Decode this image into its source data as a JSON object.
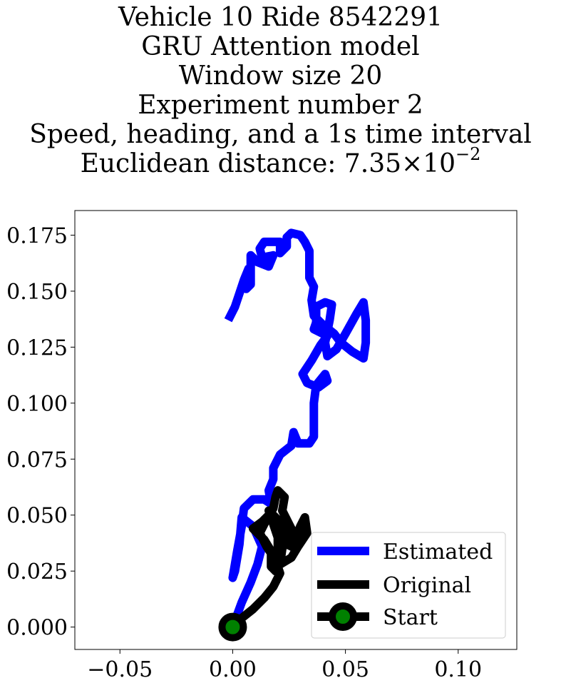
{
  "chart_data": {
    "type": "line",
    "title_lines": [
      "Vehicle 10 Ride 8542291",
      "GRU Attention model",
      "Window size 20",
      "Experiment number 2",
      "Speed, heading, and a 1s time interval"
    ],
    "distance_label": "Euclidean distance:",
    "distance_mantissa": "7.35",
    "distance_times": "×",
    "distance_base": "10",
    "distance_exponent": "−2",
    "xlabel": "",
    "ylabel": "",
    "xlim": [
      -0.07,
      0.126
    ],
    "ylim": [
      -0.01,
      0.186
    ],
    "xticks": [
      {
        "v": -0.05,
        "label": "−0.05"
      },
      {
        "v": 0.0,
        "label": "0.00"
      },
      {
        "v": 0.05,
        "label": "0.05"
      },
      {
        "v": 0.1,
        "label": "0.10"
      }
    ],
    "yticks": [
      {
        "v": 0.0,
        "label": "0.000"
      },
      {
        "v": 0.025,
        "label": "0.025"
      },
      {
        "v": 0.05,
        "label": "0.050"
      },
      {
        "v": 0.075,
        "label": "0.075"
      },
      {
        "v": 0.1,
        "label": "0.100"
      },
      {
        "v": 0.125,
        "label": "0.125"
      },
      {
        "v": 0.15,
        "label": "0.150"
      },
      {
        "v": 0.175,
        "label": "0.175"
      }
    ],
    "legend_position": "lower-right",
    "series": [
      {
        "name": "Estimated",
        "color": "#0000ff",
        "points": [
          [
            0.0,
            0.0
          ],
          [
            0.004,
            0.011
          ],
          [
            0.008,
            0.02
          ],
          [
            0.011,
            0.028
          ],
          [
            0.013,
            0.036
          ],
          [
            0.009,
            0.045
          ],
          [
            0.004,
            0.049
          ],
          [
            0.003,
            0.037
          ],
          [
            0.001,
            0.025
          ],
          [
            0.0,
            0.022
          ],
          [
            0.002,
            0.034
          ],
          [
            0.004,
            0.045
          ],
          [
            0.005,
            0.053
          ],
          [
            0.009,
            0.057
          ],
          [
            0.014,
            0.057
          ],
          [
            0.017,
            0.055
          ],
          [
            0.016,
            0.061
          ],
          [
            0.018,
            0.066
          ],
          [
            0.018,
            0.071
          ],
          [
            0.021,
            0.077
          ],
          [
            0.026,
            0.081
          ],
          [
            0.027,
            0.087
          ],
          [
            0.029,
            0.082
          ],
          [
            0.034,
            0.082
          ],
          [
            0.036,
            0.085
          ],
          [
            0.036,
            0.092
          ],
          [
            0.036,
            0.1
          ],
          [
            0.037,
            0.108
          ],
          [
            0.041,
            0.113
          ],
          [
            0.042,
            0.11
          ],
          [
            0.038,
            0.107
          ],
          [
            0.033,
            0.109
          ],
          [
            0.031,
            0.113
          ],
          [
            0.035,
            0.119
          ],
          [
            0.039,
            0.126
          ],
          [
            0.042,
            0.13
          ],
          [
            0.036,
            0.133
          ],
          [
            0.037,
            0.136
          ],
          [
            0.037,
            0.143
          ],
          [
            0.041,
            0.145
          ],
          [
            0.044,
            0.144
          ],
          [
            0.043,
            0.137
          ],
          [
            0.041,
            0.127
          ],
          [
            0.042,
            0.121
          ],
          [
            0.046,
            0.124
          ],
          [
            0.05,
            0.131
          ],
          [
            0.055,
            0.14
          ],
          [
            0.058,
            0.145
          ],
          [
            0.059,
            0.137
          ],
          [
            0.059,
            0.127
          ],
          [
            0.058,
            0.12
          ],
          [
            0.053,
            0.123
          ],
          [
            0.048,
            0.127
          ],
          [
            0.045,
            0.131
          ],
          [
            0.04,
            0.135
          ],
          [
            0.036,
            0.139
          ],
          [
            0.035,
            0.146
          ],
          [
            0.036,
            0.152
          ],
          [
            0.034,
            0.156
          ],
          [
            0.034,
            0.161
          ],
          [
            0.034,
            0.168
          ],
          [
            0.032,
            0.172
          ],
          [
            0.03,
            0.175
          ],
          [
            0.026,
            0.176
          ],
          [
            0.024,
            0.174
          ],
          [
            0.024,
            0.17
          ],
          [
            0.021,
            0.167
          ],
          [
            0.021,
            0.172
          ],
          [
            0.019,
            0.172
          ],
          [
            0.014,
            0.172
          ],
          [
            0.012,
            0.169
          ],
          [
            0.013,
            0.165
          ],
          [
            0.018,
            0.166
          ],
          [
            0.016,
            0.161
          ],
          [
            0.011,
            0.163
          ],
          [
            0.008,
            0.166
          ],
          [
            0.008,
            0.161
          ],
          [
            0.008,
            0.153
          ],
          [
            0.006,
            0.151
          ],
          [
            0.008,
            0.156
          ],
          [
            0.007,
            0.16
          ],
          [
            0.005,
            0.155
          ],
          [
            0.003,
            0.149
          ],
          [
            0.001,
            0.143
          ],
          [
            -0.002,
            0.137
          ]
        ]
      },
      {
        "name": "Original",
        "color": "#000000",
        "points": [
          [
            0.0,
            0.0
          ],
          [
            0.004,
            0.004
          ],
          [
            0.009,
            0.008
          ],
          [
            0.014,
            0.013
          ],
          [
            0.018,
            0.018
          ],
          [
            0.021,
            0.024
          ],
          [
            0.019,
            0.03
          ],
          [
            0.015,
            0.036
          ],
          [
            0.012,
            0.042
          ],
          [
            0.015,
            0.048
          ],
          [
            0.018,
            0.053
          ],
          [
            0.019,
            0.058
          ],
          [
            0.02,
            0.061
          ],
          [
            0.023,
            0.058
          ],
          [
            0.022,
            0.052
          ],
          [
            0.025,
            0.046
          ],
          [
            0.028,
            0.04
          ],
          [
            0.03,
            0.045
          ],
          [
            0.032,
            0.049
          ],
          [
            0.033,
            0.042
          ],
          [
            0.029,
            0.036
          ],
          [
            0.026,
            0.031
          ],
          [
            0.021,
            0.028
          ],
          [
            0.022,
            0.035
          ],
          [
            0.024,
            0.04
          ],
          [
            0.02,
            0.046
          ],
          [
            0.016,
            0.05
          ],
          [
            0.013,
            0.047
          ],
          [
            0.009,
            0.044
          ],
          [
            0.014,
            0.039
          ],
          [
            0.017,
            0.034
          ],
          [
            0.017,
            0.027
          ],
          [
            0.019,
            0.025
          ],
          [
            0.02,
            0.033
          ],
          [
            0.02,
            0.04
          ],
          [
            0.016,
            0.052
          ],
          [
            0.02,
            0.048
          ],
          [
            0.025,
            0.043
          ],
          [
            0.028,
            0.035
          ],
          [
            0.022,
            0.038
          ]
        ]
      }
    ],
    "start": {
      "name": "Start",
      "x": 0.0,
      "y": 0.0,
      "marker_color": "#008000",
      "edge_color": "#000000"
    }
  }
}
